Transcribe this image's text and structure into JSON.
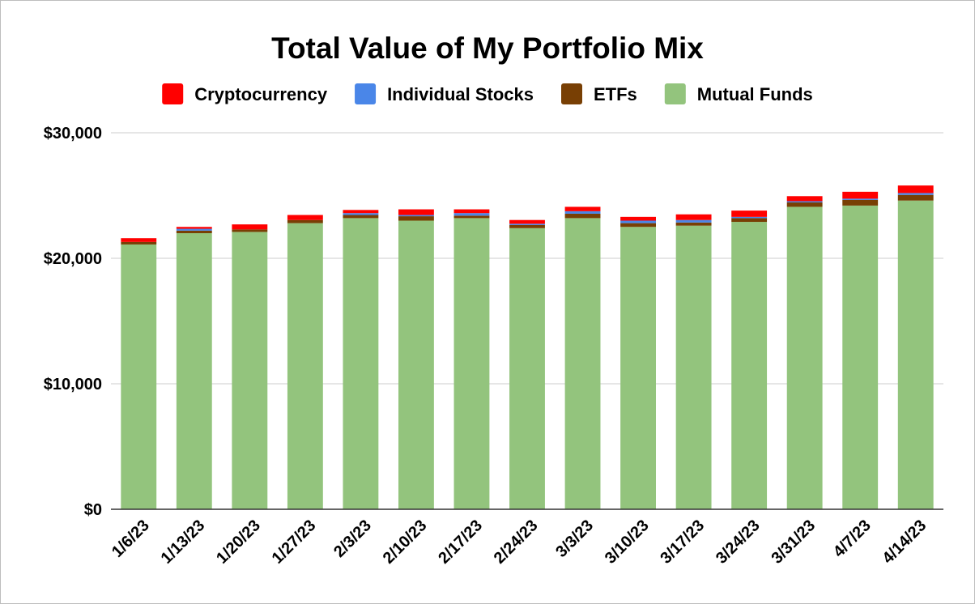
{
  "chart_data": {
    "type": "bar",
    "stacked": true,
    "title": "Total Value of My Portfolio Mix",
    "xlabel": "",
    "ylabel": "",
    "ylim": [
      0,
      30000
    ],
    "y_ticks": [
      {
        "value": 0,
        "label": "$0"
      },
      {
        "value": 10000,
        "label": "$10,000"
      },
      {
        "value": 20000,
        "label": "$20,000"
      },
      {
        "value": 30000,
        "label": "$30,000"
      }
    ],
    "grid": true,
    "legend_position": "top",
    "categories": [
      "1/6/23",
      "1/13/23",
      "1/20/23",
      "1/27/23",
      "2/3/23",
      "2/10/23",
      "2/17/23",
      "2/24/23",
      "3/3/23",
      "3/10/23",
      "3/17/23",
      "3/24/23",
      "3/31/23",
      "4/7/23",
      "4/14/23"
    ],
    "series": [
      {
        "name": "Mutual Funds",
        "color": "#93c47d",
        "values": [
          21100,
          22000,
          22100,
          22800,
          23200,
          23000,
          23200,
          22400,
          23200,
          22500,
          22600,
          22900,
          24100,
          24200,
          24600
        ]
      },
      {
        "name": "ETFs",
        "color": "#783f04",
        "values": [
          200,
          200,
          200,
          250,
          250,
          350,
          200,
          250,
          350,
          300,
          250,
          300,
          350,
          450,
          450
        ]
      },
      {
        "name": "Individual Stocks",
        "color": "#4a86e8",
        "values": [
          0,
          150,
          0,
          0,
          150,
          100,
          200,
          100,
          200,
          200,
          200,
          100,
          100,
          100,
          150
        ]
      },
      {
        "name": "Cryptocurrency",
        "color": "#ff0000",
        "values": [
          300,
          150,
          400,
          400,
          250,
          450,
          300,
          300,
          350,
          300,
          450,
          500,
          400,
          550,
          600
        ]
      }
    ],
    "legend_order": [
      "Cryptocurrency",
      "Individual Stocks",
      "ETFs",
      "Mutual Funds"
    ]
  }
}
